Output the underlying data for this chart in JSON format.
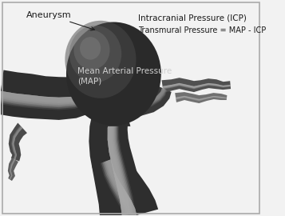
{
  "background_color": "#f2f2f2",
  "fig_bg": "#f2f2f2",
  "labels": {
    "aneurysm": "Aneurysm",
    "icp": "Intracranial Pressure (ICP)",
    "transmural": "Transmural Pressure = MAP - ICP",
    "map": "Mean Arterial Pressure\n(MAP)"
  },
  "label_color": "#1a1a1a",
  "map_text_color": "#d0d0d0",
  "vessel_dark": "#2a2a2a",
  "vessel_mid": "#555555",
  "vessel_light": "#888888",
  "vessel_highlight": "#aaaaaa"
}
